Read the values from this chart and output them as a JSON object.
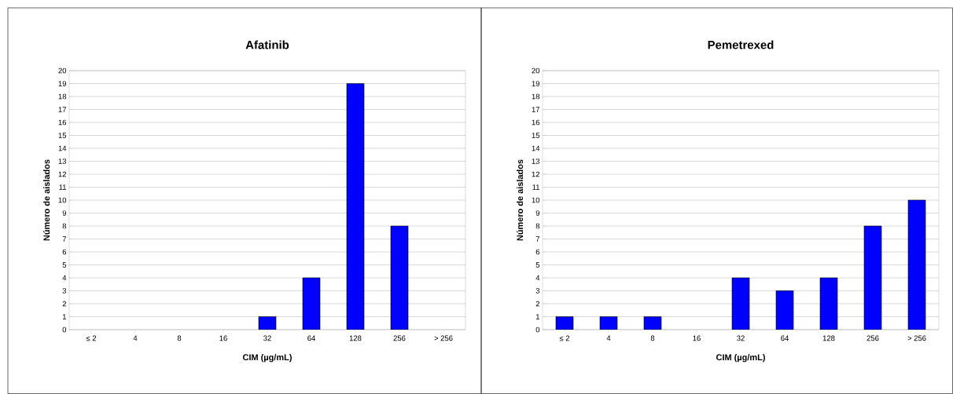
{
  "chart_data": [
    {
      "type": "bar",
      "title": "Afatinib",
      "xlabel": "CIM (µg/mL)",
      "ylabel": "Número de aislados",
      "categories": [
        "≤ 2",
        "4",
        "8",
        "16",
        "32",
        "64",
        "128",
        "256",
        "> 256"
      ],
      "values": [
        0,
        0,
        0,
        0,
        1,
        4,
        19,
        8,
        0
      ],
      "color": "#0000ff",
      "ylim": [
        0,
        20
      ],
      "yticks": [
        0,
        1,
        2,
        3,
        4,
        5,
        6,
        7,
        8,
        9,
        10,
        11,
        12,
        13,
        14,
        15,
        16,
        17,
        18,
        19,
        20
      ],
      "grid": "y"
    },
    {
      "type": "bar",
      "title": "Pemetrexed",
      "xlabel": "CIM (µg/mL)",
      "ylabel": "Número de aislados",
      "categories": [
        "≤ 2",
        "4",
        "8",
        "16",
        "32",
        "64",
        "128",
        "256",
        "> 256"
      ],
      "values": [
        1,
        1,
        1,
        0,
        4,
        3,
        4,
        8,
        10
      ],
      "color": "#0000ff",
      "ylim": [
        0,
        20
      ],
      "yticks": [
        0,
        1,
        2,
        3,
        4,
        5,
        6,
        7,
        8,
        9,
        10,
        11,
        12,
        13,
        14,
        15,
        16,
        17,
        18,
        19,
        20
      ],
      "grid": "y"
    }
  ]
}
